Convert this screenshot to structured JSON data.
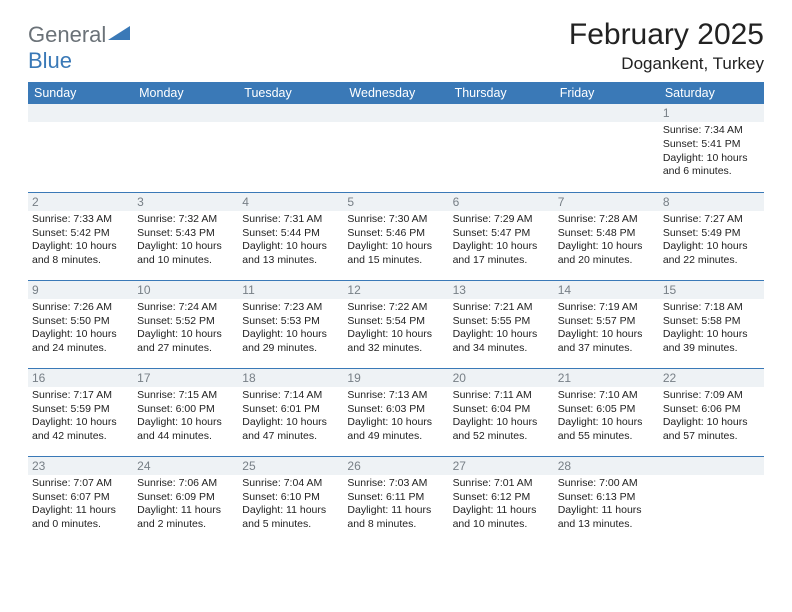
{
  "logo": {
    "text1": "General",
    "text2": "Blue"
  },
  "title": "February 2025",
  "location": "Dogankent, Turkey",
  "colors": {
    "header_bg": "#3a79b7",
    "header_text": "#ffffff",
    "daynum_bg": "#eef2f5",
    "daynum_text": "#777f86",
    "rule": "#3a79b7",
    "body_text": "#222222"
  },
  "day_names": [
    "Sunday",
    "Monday",
    "Tuesday",
    "Wednesday",
    "Thursday",
    "Friday",
    "Saturday"
  ],
  "weeks": [
    [
      {
        "n": "",
        "sunrise": "",
        "sunset": "",
        "daylight": ""
      },
      {
        "n": "",
        "sunrise": "",
        "sunset": "",
        "daylight": ""
      },
      {
        "n": "",
        "sunrise": "",
        "sunset": "",
        "daylight": ""
      },
      {
        "n": "",
        "sunrise": "",
        "sunset": "",
        "daylight": ""
      },
      {
        "n": "",
        "sunrise": "",
        "sunset": "",
        "daylight": ""
      },
      {
        "n": "",
        "sunrise": "",
        "sunset": "",
        "daylight": ""
      },
      {
        "n": "1",
        "sunrise": "Sunrise: 7:34 AM",
        "sunset": "Sunset: 5:41 PM",
        "daylight": "Daylight: 10 hours and 6 minutes."
      }
    ],
    [
      {
        "n": "2",
        "sunrise": "Sunrise: 7:33 AM",
        "sunset": "Sunset: 5:42 PM",
        "daylight": "Daylight: 10 hours and 8 minutes."
      },
      {
        "n": "3",
        "sunrise": "Sunrise: 7:32 AM",
        "sunset": "Sunset: 5:43 PM",
        "daylight": "Daylight: 10 hours and 10 minutes."
      },
      {
        "n": "4",
        "sunrise": "Sunrise: 7:31 AM",
        "sunset": "Sunset: 5:44 PM",
        "daylight": "Daylight: 10 hours and 13 minutes."
      },
      {
        "n": "5",
        "sunrise": "Sunrise: 7:30 AM",
        "sunset": "Sunset: 5:46 PM",
        "daylight": "Daylight: 10 hours and 15 minutes."
      },
      {
        "n": "6",
        "sunrise": "Sunrise: 7:29 AM",
        "sunset": "Sunset: 5:47 PM",
        "daylight": "Daylight: 10 hours and 17 minutes."
      },
      {
        "n": "7",
        "sunrise": "Sunrise: 7:28 AM",
        "sunset": "Sunset: 5:48 PM",
        "daylight": "Daylight: 10 hours and 20 minutes."
      },
      {
        "n": "8",
        "sunrise": "Sunrise: 7:27 AM",
        "sunset": "Sunset: 5:49 PM",
        "daylight": "Daylight: 10 hours and 22 minutes."
      }
    ],
    [
      {
        "n": "9",
        "sunrise": "Sunrise: 7:26 AM",
        "sunset": "Sunset: 5:50 PM",
        "daylight": "Daylight: 10 hours and 24 minutes."
      },
      {
        "n": "10",
        "sunrise": "Sunrise: 7:24 AM",
        "sunset": "Sunset: 5:52 PM",
        "daylight": "Daylight: 10 hours and 27 minutes."
      },
      {
        "n": "11",
        "sunrise": "Sunrise: 7:23 AM",
        "sunset": "Sunset: 5:53 PM",
        "daylight": "Daylight: 10 hours and 29 minutes."
      },
      {
        "n": "12",
        "sunrise": "Sunrise: 7:22 AM",
        "sunset": "Sunset: 5:54 PM",
        "daylight": "Daylight: 10 hours and 32 minutes."
      },
      {
        "n": "13",
        "sunrise": "Sunrise: 7:21 AM",
        "sunset": "Sunset: 5:55 PM",
        "daylight": "Daylight: 10 hours and 34 minutes."
      },
      {
        "n": "14",
        "sunrise": "Sunrise: 7:19 AM",
        "sunset": "Sunset: 5:57 PM",
        "daylight": "Daylight: 10 hours and 37 minutes."
      },
      {
        "n": "15",
        "sunrise": "Sunrise: 7:18 AM",
        "sunset": "Sunset: 5:58 PM",
        "daylight": "Daylight: 10 hours and 39 minutes."
      }
    ],
    [
      {
        "n": "16",
        "sunrise": "Sunrise: 7:17 AM",
        "sunset": "Sunset: 5:59 PM",
        "daylight": "Daylight: 10 hours and 42 minutes."
      },
      {
        "n": "17",
        "sunrise": "Sunrise: 7:15 AM",
        "sunset": "Sunset: 6:00 PM",
        "daylight": "Daylight: 10 hours and 44 minutes."
      },
      {
        "n": "18",
        "sunrise": "Sunrise: 7:14 AM",
        "sunset": "Sunset: 6:01 PM",
        "daylight": "Daylight: 10 hours and 47 minutes."
      },
      {
        "n": "19",
        "sunrise": "Sunrise: 7:13 AM",
        "sunset": "Sunset: 6:03 PM",
        "daylight": "Daylight: 10 hours and 49 minutes."
      },
      {
        "n": "20",
        "sunrise": "Sunrise: 7:11 AM",
        "sunset": "Sunset: 6:04 PM",
        "daylight": "Daylight: 10 hours and 52 minutes."
      },
      {
        "n": "21",
        "sunrise": "Sunrise: 7:10 AM",
        "sunset": "Sunset: 6:05 PM",
        "daylight": "Daylight: 10 hours and 55 minutes."
      },
      {
        "n": "22",
        "sunrise": "Sunrise: 7:09 AM",
        "sunset": "Sunset: 6:06 PM",
        "daylight": "Daylight: 10 hours and 57 minutes."
      }
    ],
    [
      {
        "n": "23",
        "sunrise": "Sunrise: 7:07 AM",
        "sunset": "Sunset: 6:07 PM",
        "daylight": "Daylight: 11 hours and 0 minutes."
      },
      {
        "n": "24",
        "sunrise": "Sunrise: 7:06 AM",
        "sunset": "Sunset: 6:09 PM",
        "daylight": "Daylight: 11 hours and 2 minutes."
      },
      {
        "n": "25",
        "sunrise": "Sunrise: 7:04 AM",
        "sunset": "Sunset: 6:10 PM",
        "daylight": "Daylight: 11 hours and 5 minutes."
      },
      {
        "n": "26",
        "sunrise": "Sunrise: 7:03 AM",
        "sunset": "Sunset: 6:11 PM",
        "daylight": "Daylight: 11 hours and 8 minutes."
      },
      {
        "n": "27",
        "sunrise": "Sunrise: 7:01 AM",
        "sunset": "Sunset: 6:12 PM",
        "daylight": "Daylight: 11 hours and 10 minutes."
      },
      {
        "n": "28",
        "sunrise": "Sunrise: 7:00 AM",
        "sunset": "Sunset: 6:13 PM",
        "daylight": "Daylight: 11 hours and 13 minutes."
      },
      {
        "n": "",
        "sunrise": "",
        "sunset": "",
        "daylight": ""
      }
    ]
  ]
}
